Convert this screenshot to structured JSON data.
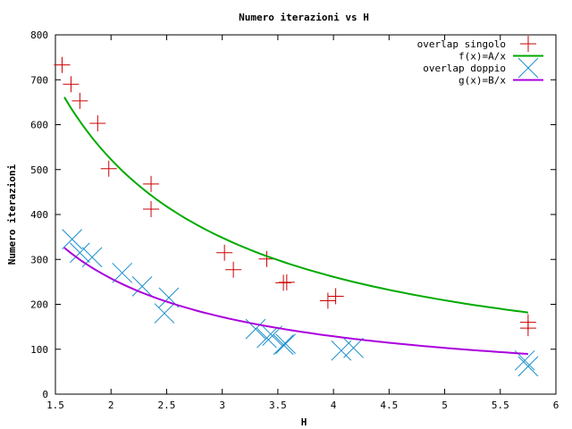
{
  "chart_data": {
    "type": "scatter",
    "title": "Numero iterazioni vs H",
    "xlabel": "H",
    "ylabel": "Numero iterazioni",
    "xlim": [
      1.5,
      6
    ],
    "ylim": [
      0,
      800
    ],
    "x_ticks": [
      "1.5",
      "2",
      "2.5",
      "3",
      "3.5",
      "4",
      "4.5",
      "5",
      "5.5",
      "6"
    ],
    "y_ticks": [
      "0",
      "100",
      "200",
      "300",
      "400",
      "500",
      "600",
      "700",
      "800"
    ],
    "grid": false,
    "legend_position": "top-right",
    "series": [
      {
        "name": "overlap singolo",
        "kind": "points",
        "marker": "plus",
        "color": "#cc0000",
        "points": [
          [
            1.56,
            733
          ],
          [
            1.64,
            690
          ],
          [
            1.72,
            653
          ],
          [
            1.88,
            603
          ],
          [
            1.98,
            502
          ],
          [
            2.36,
            468
          ],
          [
            2.36,
            412
          ],
          [
            3.02,
            315
          ],
          [
            3.1,
            277
          ],
          [
            3.4,
            301
          ],
          [
            3.55,
            248
          ],
          [
            3.58,
            249
          ],
          [
            3.95,
            208
          ],
          [
            4.02,
            218
          ],
          [
            5.75,
            160
          ],
          [
            5.75,
            147
          ]
        ]
      },
      {
        "name": "f(x)=A/x",
        "kind": "line",
        "color": "#00aa00",
        "fn": "A/x",
        "A": 1045,
        "x_range": [
          1.58,
          5.75
        ]
      },
      {
        "name": "overlap doppio",
        "kind": "points",
        "marker": "x",
        "color": "#1a8fcc",
        "points": [
          [
            1.65,
            345
          ],
          [
            1.72,
            315
          ],
          [
            1.83,
            305
          ],
          [
            2.1,
            270
          ],
          [
            2.28,
            240
          ],
          [
            2.48,
            180
          ],
          [
            2.52,
            215
          ],
          [
            3.3,
            145
          ],
          [
            3.4,
            125
          ],
          [
            3.45,
            130
          ],
          [
            3.55,
            110
          ],
          [
            3.57,
            112
          ],
          [
            4.07,
            97
          ],
          [
            4.18,
            103
          ],
          [
            5.72,
            75
          ],
          [
            5.75,
            62
          ]
        ]
      },
      {
        "name": "g(x)=B/x",
        "kind": "line",
        "color": "#aa00dd",
        "fn": "B/x",
        "B": 515,
        "x_range": [
          1.58,
          5.75
        ]
      }
    ]
  }
}
